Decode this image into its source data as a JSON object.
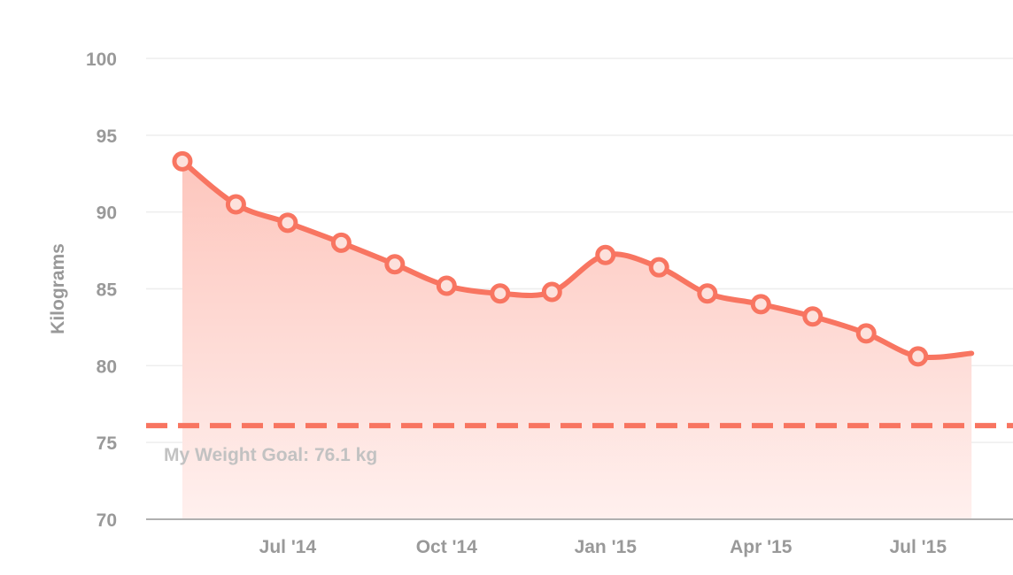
{
  "chart_data": {
    "type": "area",
    "x": [
      "2014-05-01",
      "2014-06-01",
      "2014-07-01",
      "2014-08-01",
      "2014-09-01",
      "2014-10-01",
      "2014-11-01",
      "2014-12-01",
      "2015-01-01",
      "2015-02-01",
      "2015-03-01",
      "2015-04-01",
      "2015-05-01",
      "2015-06-01",
      "2015-07-01",
      "2015-08-01"
    ],
    "series": [
      {
        "values": [
          93.3,
          90.5,
          89.3,
          88.0,
          86.6,
          85.2,
          84.7,
          84.8,
          87.2,
          86.4,
          84.7,
          84.0,
          83.2,
          82.1,
          80.6,
          80.8
        ]
      }
    ],
    "xticks": [
      {
        "date": "2014-07-01",
        "label": "Jul '14"
      },
      {
        "date": "2014-10-01",
        "label": "Oct '14"
      },
      {
        "date": "2015-01-01",
        "label": "Jan '15"
      },
      {
        "date": "2015-04-01",
        "label": "Apr '15"
      },
      {
        "date": "2015-07-01",
        "label": "Jul '15"
      }
    ],
    "yticks": [
      "100",
      "95",
      "90",
      "85",
      "80",
      "75",
      "70"
    ],
    "ylim": [
      70,
      100
    ],
    "xlim": [
      "2014-04-10",
      "2015-08-25"
    ],
    "ylabel": "Kilograms",
    "xlabel": "",
    "grid": true,
    "goal": {
      "value": 76.1,
      "label": "My Weight Goal: 76.1 kg"
    },
    "colors": {
      "line": "#f87561",
      "fill_top": "#fdc6bd",
      "fill_bottom": "#fff0ee",
      "marker_fill": "#fde1dc",
      "grid": "#eeeeee",
      "axis": "#b0b0b0"
    }
  }
}
